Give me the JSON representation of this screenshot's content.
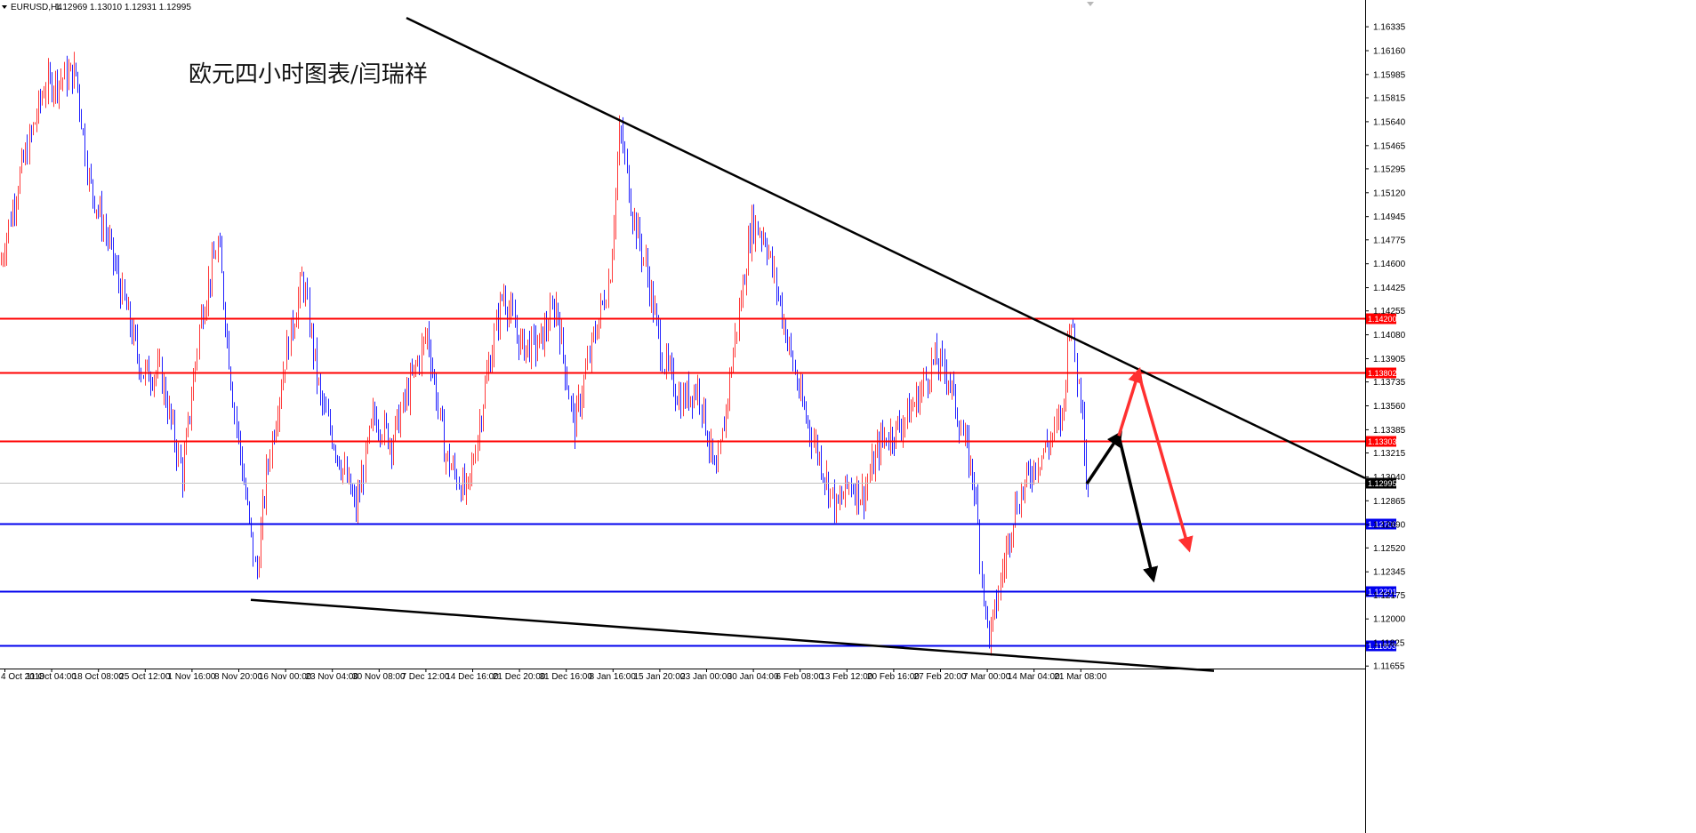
{
  "header": {
    "symbol": "EURUSD,H4",
    "ohlc": "1.12969 1.13010 1.12931 1.12995",
    "annotation": "欧元四小时图表/闫瑞祥"
  },
  "colors": {
    "bull": "#ff3b3b",
    "bear": "#2020ff",
    "resistance": "#ff0000",
    "support": "#0000ee",
    "trendline": "#000000",
    "current_price_line": "#c0c0c0"
  },
  "chart_data": {
    "type": "candlestick",
    "symbol": "EURUSD",
    "timeframe": "H4",
    "ylim": [
      1.1165,
      1.1642
    ],
    "yticks": [
      "1.16335",
      "1.16160",
      "1.15985",
      "1.15815",
      "1.15640",
      "1.15465",
      "1.15295",
      "1.15120",
      "1.14945",
      "1.14775",
      "1.14600",
      "1.14425",
      "1.14255",
      "1.14080",
      "1.13905",
      "1.13735",
      "1.13560",
      "1.13385",
      "1.13215",
      "1.13040",
      "1.12865",
      "1.12690",
      "1.12520",
      "1.12345",
      "1.12175",
      "1.12000",
      "1.11825",
      "1.11655"
    ],
    "xticks": [
      "4 Oct 2018",
      "11 Oct 04:00",
      "18 Oct 08:00",
      "25 Oct 12:00",
      "1 Nov 16:00",
      "8 Nov 20:00",
      "16 Nov 00:00",
      "23 Nov 04:00",
      "30 Nov 08:00",
      "7 Dec 12:00",
      "14 Dec 16:00",
      "21 Dec 20:00",
      "31 Dec 16:00",
      "8 Jan 16:00",
      "15 Jan 20:00",
      "23 Jan 00:00",
      "30 Jan 04:00",
      "6 Feb 08:00",
      "13 Feb 12:00",
      "20 Feb 16:00",
      "27 Feb 20:00",
      "7 Mar 00:00",
      "14 Mar 04:00",
      "21 Mar 08:00"
    ],
    "current_price": 1.12995,
    "horizontal_levels": [
      {
        "price": 1.142,
        "label": "1.14200",
        "kind": "resistance"
      },
      {
        "price": 1.13802,
        "label": "1.13802",
        "kind": "resistance"
      },
      {
        "price": 1.13303,
        "label": "1.13303",
        "kind": "resistance"
      },
      {
        "price": 1.127,
        "label": "1.12700",
        "kind": "support"
      },
      {
        "price": 1.12201,
        "label": "1.12201",
        "kind": "support"
      },
      {
        "price": 1.11803,
        "label": "1.11803",
        "kind": "support"
      }
    ],
    "trendlines": [
      {
        "name": "upper-descending",
        "from": {
          "x": "8 Oct 2018",
          "y": 1.164
        },
        "to": {
          "x": "28 Mar 2019",
          "y": 1.1303
        }
      },
      {
        "name": "lower-descending",
        "from": {
          "x": "8 Nov 2018",
          "y": 1.1214
        },
        "to": {
          "x": "28 Mar 2019",
          "y": 1.1162
        }
      }
    ],
    "scenario_arrows": [
      {
        "color": "black",
        "path": [
          {
            "x": "21 Mar 2019",
            "y": 1.1299
          },
          {
            "x": "22 Mar 2019",
            "y": 1.1334
          },
          {
            "x": "25 Mar 2019",
            "y": 1.1231
          }
        ]
      },
      {
        "color": "red",
        "path": [
          {
            "x": "22 Mar 2019",
            "y": 1.1334
          },
          {
            "x": "23 Mar 2019",
            "y": 1.138
          },
          {
            "x": "26 Mar 2019",
            "y": 1.1253
          }
        ]
      }
    ],
    "price_path": [
      [
        0,
        1.146
      ],
      [
        20,
        1.152
      ],
      [
        50,
        1.159
      ],
      [
        85,
        1.16
      ],
      [
        100,
        1.152
      ],
      [
        120,
        1.148
      ],
      [
        140,
        1.143
      ],
      [
        160,
        1.138
      ],
      [
        180,
        1.138
      ],
      [
        205,
        1.1305
      ],
      [
        225,
        1.142
      ],
      [
        245,
        1.1475
      ],
      [
        262,
        1.136
      ],
      [
        280,
        1.127
      ],
      [
        288,
        1.123
      ],
      [
        300,
        1.131
      ],
      [
        320,
        1.139
      ],
      [
        340,
        1.145
      ],
      [
        360,
        1.136
      ],
      [
        380,
        1.132
      ],
      [
        400,
        1.128
      ],
      [
        420,
        1.135
      ],
      [
        440,
        1.133
      ],
      [
        460,
        1.137
      ],
      [
        480,
        1.141
      ],
      [
        500,
        1.132
      ],
      [
        525,
        1.129
      ],
      [
        545,
        1.137
      ],
      [
        565,
        1.144
      ],
      [
        585,
        1.14
      ],
      [
        605,
        1.14
      ],
      [
        625,
        1.143
      ],
      [
        645,
        1.134
      ],
      [
        665,
        1.14
      ],
      [
        685,
        1.145
      ],
      [
        697,
        1.156
      ],
      [
        710,
        1.15
      ],
      [
        725,
        1.146
      ],
      [
        745,
        1.139
      ],
      [
        765,
        1.136
      ],
      [
        785,
        1.137
      ],
      [
        805,
        1.13
      ],
      [
        825,
        1.14
      ],
      [
        845,
        1.149
      ],
      [
        860,
        1.148
      ],
      [
        880,
        1.142
      ],
      [
        900,
        1.136
      ],
      [
        920,
        1.132
      ],
      [
        940,
        1.128
      ],
      [
        955,
        1.13
      ],
      [
        970,
        1.129
      ],
      [
        990,
        1.133
      ],
      [
        1010,
        1.134
      ],
      [
        1030,
        1.136
      ],
      [
        1050,
        1.139
      ],
      [
        1065,
        1.138
      ],
      [
        1080,
        1.134
      ],
      [
        1095,
        1.13
      ],
      [
        1108,
        1.12
      ],
      [
        1113,
        1.1185
      ],
      [
        1125,
        1.123
      ],
      [
        1140,
        1.128
      ],
      [
        1160,
        1.131
      ],
      [
        1180,
        1.133
      ],
      [
        1195,
        1.135
      ],
      [
        1203,
        1.143
      ],
      [
        1210,
        1.138
      ],
      [
        1217,
        1.136
      ],
      [
        1222,
        1.129
      ],
      [
        1225,
        1.13
      ]
    ]
  }
}
